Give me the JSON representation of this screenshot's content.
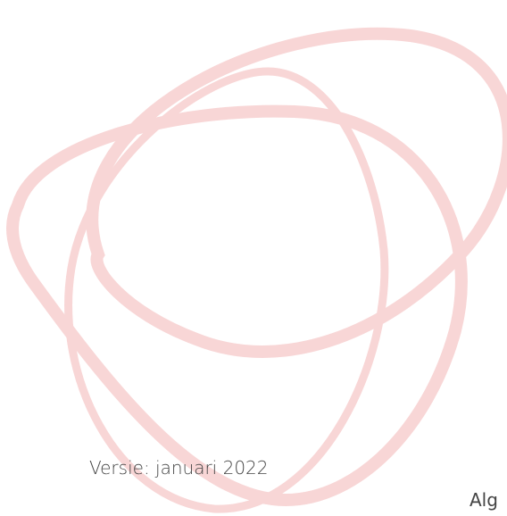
{
  "document": {
    "version": "Versie: januari 2022",
    "cut_text": "Alg"
  }
}
